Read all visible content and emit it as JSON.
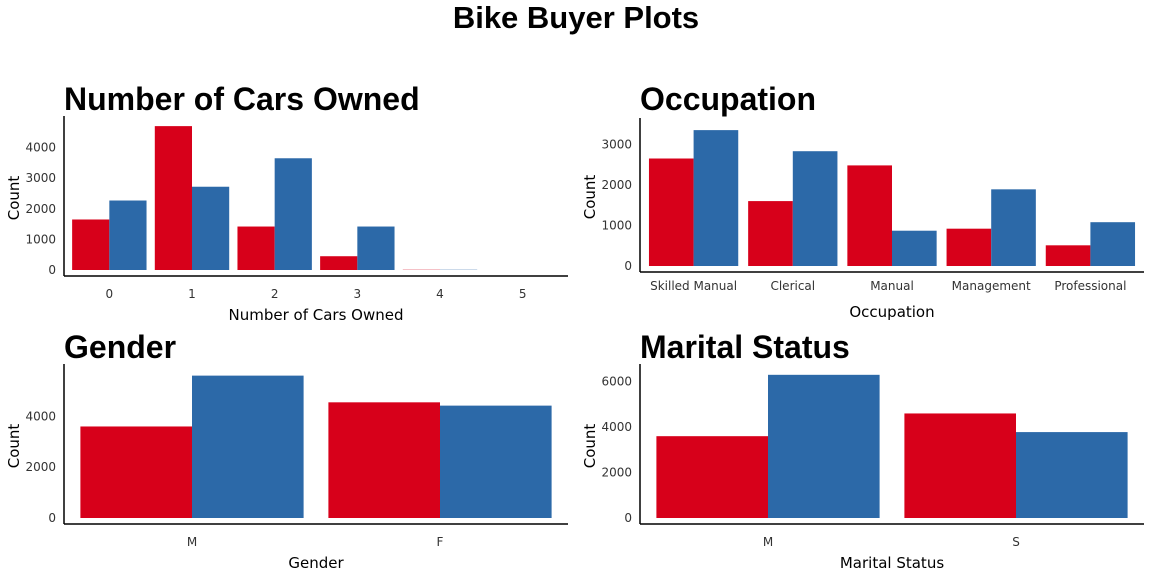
{
  "figure_title": "Bike Buyer Plots",
  "colors": {
    "series_1": "#d7001a",
    "series_2": "#2c69a8",
    "axis": "#000000"
  },
  "chart_data": [
    {
      "type": "bar",
      "title": "Number of Cars Owned",
      "xlabel": "Number of Cars Owned",
      "ylabel": "Count",
      "categories": [
        "0",
        "1",
        "2",
        "3",
        "4",
        "5"
      ],
      "series": [
        {
          "values": [
            1650,
            4700,
            1420,
            450,
            8,
            0
          ]
        },
        {
          "values": [
            2270,
            2720,
            3650,
            1420,
            8,
            0
          ]
        }
      ],
      "yticks": [
        "0",
        "1000",
        "2000",
        "3000",
        "4000"
      ],
      "ylim": [
        0,
        4900
      ],
      "grid": false,
      "legend": "none"
    },
    {
      "type": "bar",
      "title": "Occupation",
      "xlabel": "Occupation",
      "ylabel": "Count",
      "categories": [
        "Skilled Manual",
        "Clerical",
        "Manual",
        "Management",
        "Professional"
      ],
      "series": [
        {
          "values": [
            2650,
            1600,
            2480,
            920,
            510
          ]
        },
        {
          "values": [
            3350,
            2830,
            870,
            1890,
            1080
          ]
        }
      ],
      "yticks": [
        "0",
        "1000",
        "2000",
        "3000"
      ],
      "ylim": [
        0,
        3550
      ],
      "grid": false,
      "legend": "none"
    },
    {
      "type": "bar",
      "title": "Gender",
      "xlabel": "Gender",
      "ylabel": "Count",
      "categories": [
        "M",
        "F"
      ],
      "series": [
        {
          "values": [
            3600,
            4550
          ]
        },
        {
          "values": [
            5600,
            4420
          ]
        }
      ],
      "yticks": [
        "0",
        "2000",
        "4000"
      ],
      "ylim": [
        0,
        5900
      ],
      "grid": false,
      "legend": "none"
    },
    {
      "type": "bar",
      "title": "Marital Status",
      "xlabel": "Marital Status",
      "ylabel": "Count",
      "categories": [
        "M",
        "S"
      ],
      "series": [
        {
          "values": [
            3600,
            4600
          ]
        },
        {
          "values": [
            6300,
            3780
          ]
        }
      ],
      "yticks": [
        "0",
        "2000",
        "4000",
        "6000"
      ],
      "ylim": [
        0,
        6600
      ],
      "grid": false,
      "legend": "none"
    }
  ]
}
